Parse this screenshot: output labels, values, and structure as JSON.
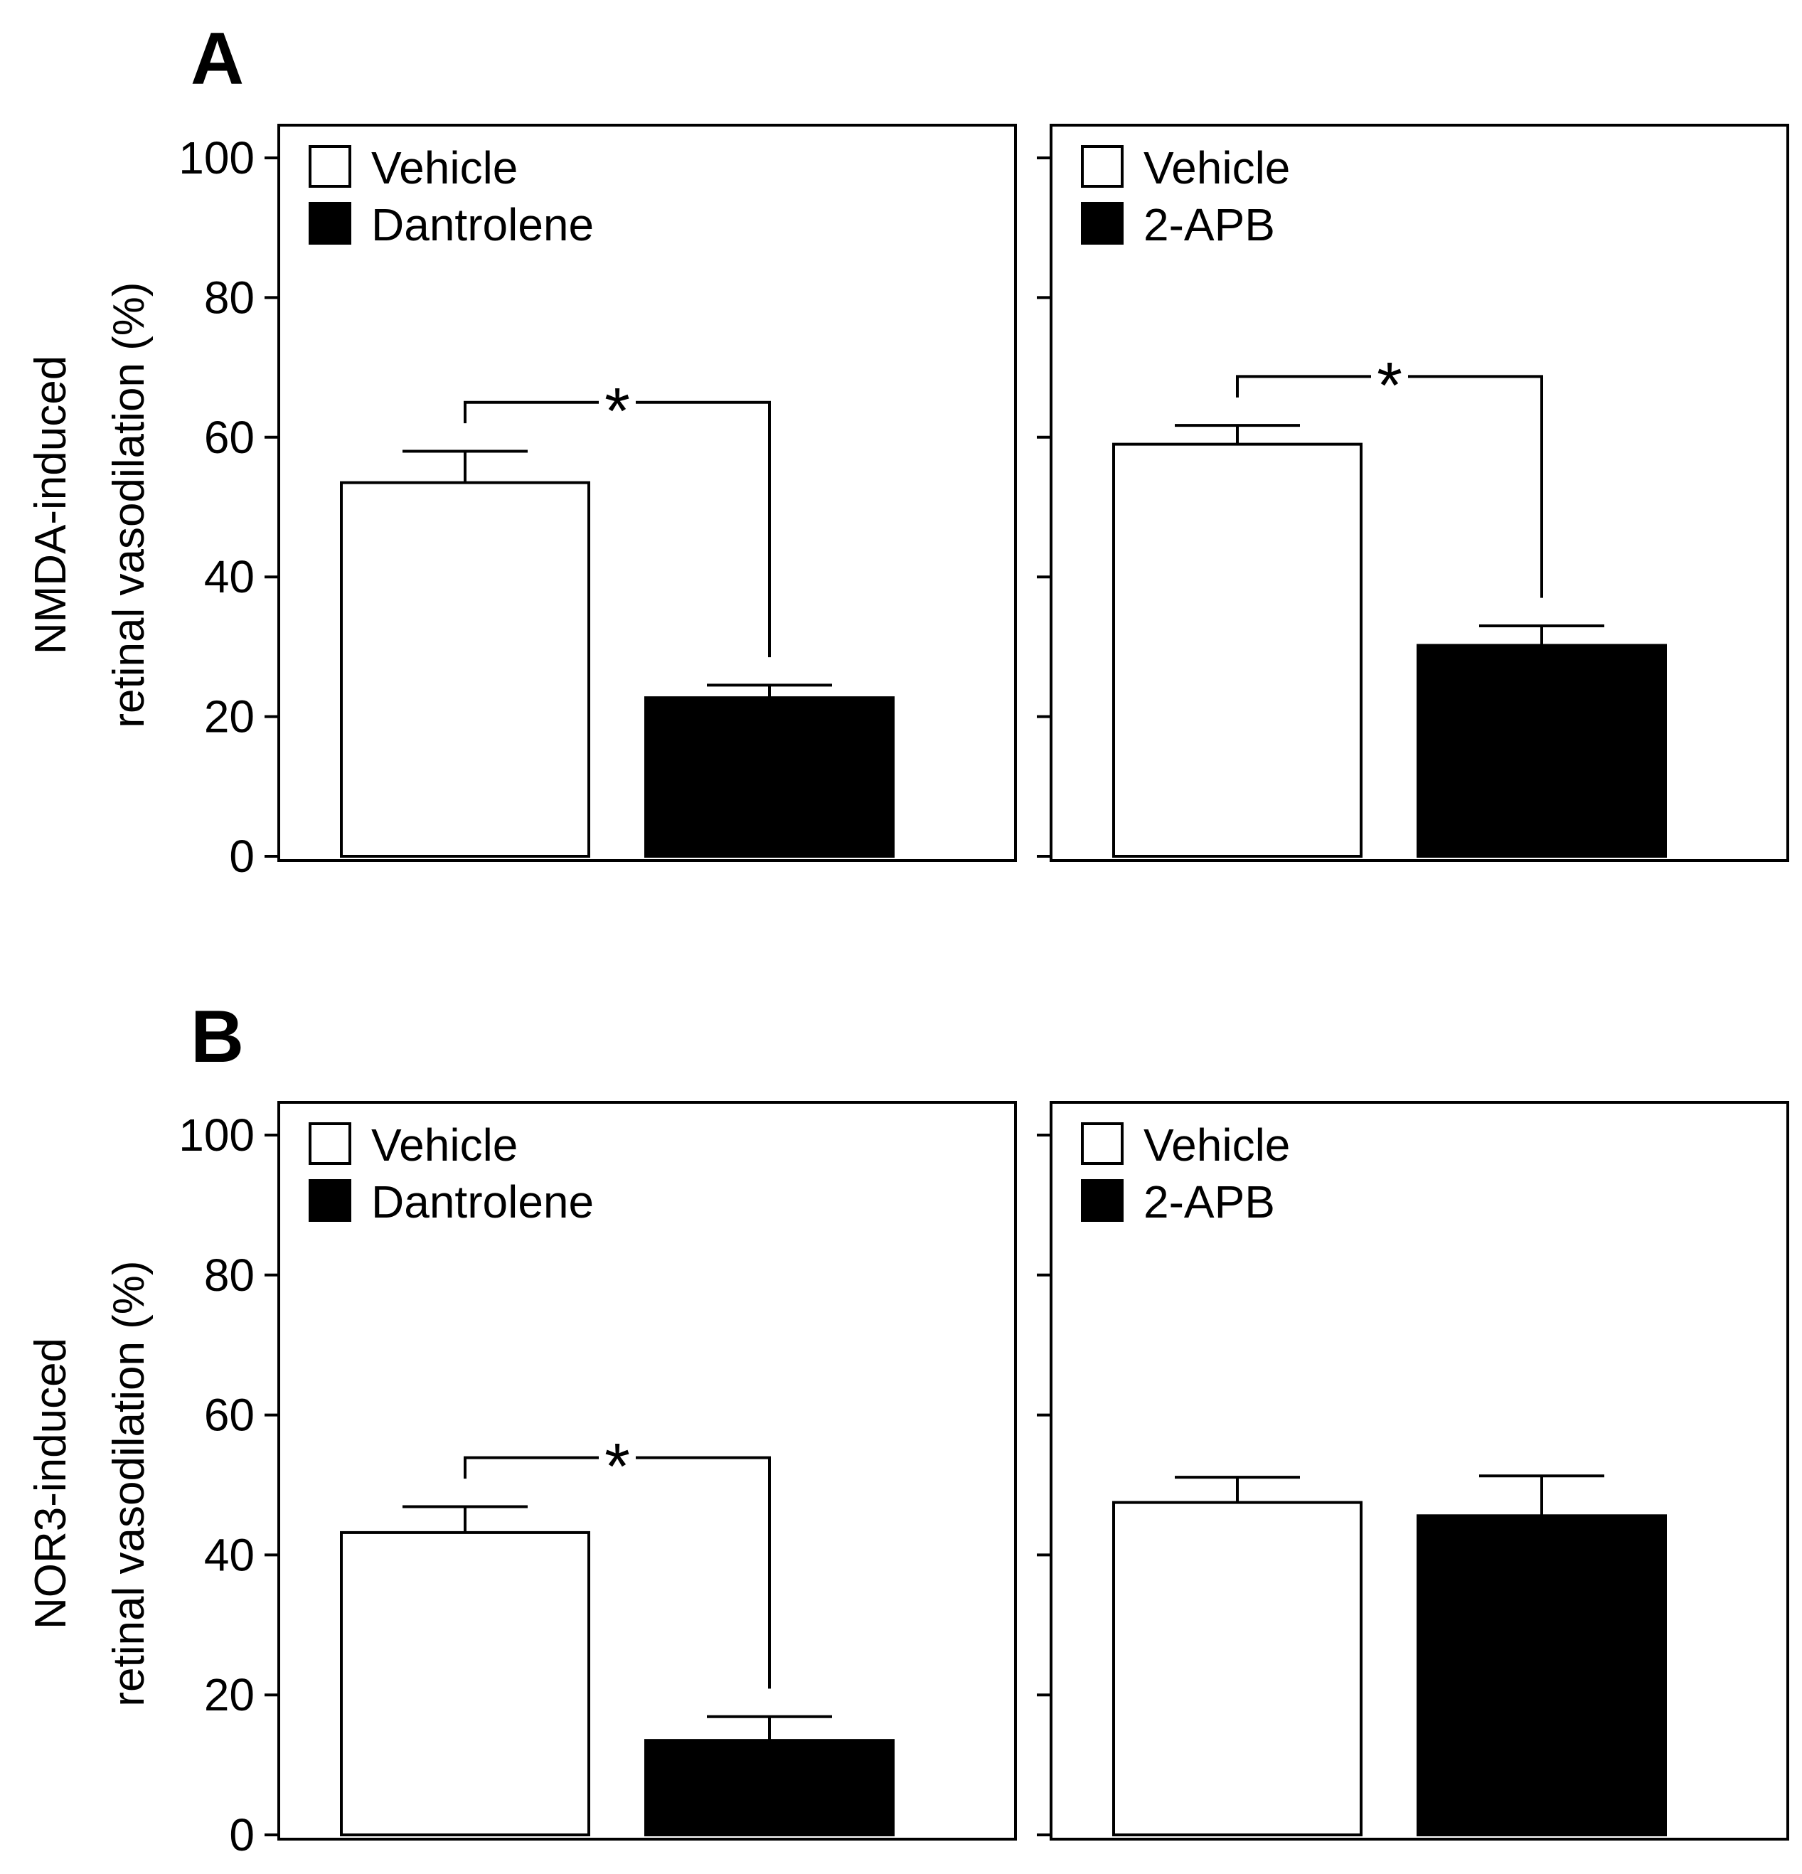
{
  "rows": [
    {
      "letter": "A",
      "ylabel": [
        "NMDA-induced",
        "retinal vasodilation (%)"
      ]
    },
    {
      "letter": "B",
      "ylabel": [
        "NOR3-induced",
        "retinal vasodilation (%)"
      ]
    }
  ],
  "chart_data": [
    {
      "type": "bar",
      "panel": "A-left",
      "categories": [
        "Vehicle",
        "Dantrolene"
      ],
      "values": [
        53.5,
        22.7
      ],
      "errors": [
        4.5,
        1.8
      ],
      "colors": [
        "#ffffff",
        "#000000"
      ],
      "significance": true,
      "significance_label": "*",
      "ylabel": "NMDA-induced retinal vasodilation (%)",
      "ylim": [
        0,
        100
      ],
      "yticks": [
        "0",
        "20",
        "40",
        "60",
        "80",
        "100"
      ],
      "legend": [
        "Vehicle",
        "Dantrolene"
      ]
    },
    {
      "type": "bar",
      "panel": "A-right",
      "categories": [
        "Vehicle",
        "2-APB"
      ],
      "values": [
        59.0,
        30.2
      ],
      "errors": [
        2.7,
        2.8
      ],
      "colors": [
        "#ffffff",
        "#000000"
      ],
      "significance": true,
      "significance_label": "*",
      "ylim": [
        0,
        100
      ],
      "legend": [
        "Vehicle",
        "2-APB"
      ]
    },
    {
      "type": "bar",
      "panel": "B-left",
      "categories": [
        "Vehicle",
        "Dantrolene"
      ],
      "values": [
        43.2,
        13.5
      ],
      "errors": [
        3.7,
        3.4
      ],
      "colors": [
        "#ffffff",
        "#000000"
      ],
      "significance": true,
      "significance_label": "*",
      "ylabel": "NOR3-induced retinal vasodilation (%)",
      "ylim": [
        0,
        100
      ],
      "yticks": [
        "0",
        "20",
        "40",
        "60",
        "80",
        "100"
      ],
      "legend": [
        "Vehicle",
        "Dantrolene"
      ]
    },
    {
      "type": "bar",
      "panel": "B-right",
      "categories": [
        "Vehicle",
        "2-APB"
      ],
      "values": [
        47.5,
        45.6
      ],
      "errors": [
        3.6,
        5.7
      ],
      "colors": [
        "#ffffff",
        "#000000"
      ],
      "significance": false,
      "significance_label": "",
      "ylim": [
        0,
        100
      ],
      "legend": [
        "Vehicle",
        "2-APB"
      ]
    }
  ]
}
